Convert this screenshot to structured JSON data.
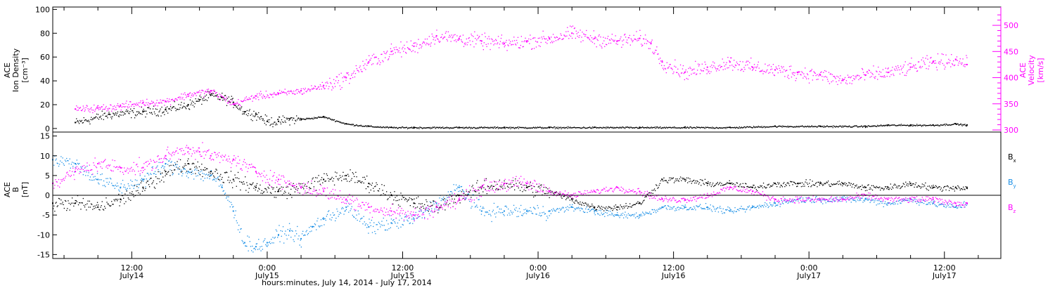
{
  "colors": {
    "black": "#000000",
    "magenta": "#ff00ff",
    "blue": "#1a8fe6",
    "axis": "#000000"
  },
  "x_axis": {
    "range_hours": [
      0,
      84
    ],
    "title": "hours:minutes, July 14, 2014 - July 17, 2014",
    "ticks": [
      {
        "time": "12:00",
        "day": "July14"
      },
      {
        "time": "0:00",
        "day": "July15"
      },
      {
        "time": "12:00",
        "day": "July15"
      },
      {
        "time": "0:00",
        "day": "July16"
      },
      {
        "time": "12:00",
        "day": "July16"
      },
      {
        "time": "0:00",
        "day": "July17"
      },
      {
        "time": "12:00",
        "day": "July17"
      }
    ]
  },
  "chart_data": [
    {
      "type": "scatter",
      "title": "",
      "ylabel": [
        "ACE",
        "Ion Density",
        "[cm⁻³]"
      ],
      "ylim": [
        -3,
        102
      ],
      "yticks": [
        0,
        20,
        40,
        60,
        80,
        100
      ],
      "y2label": [
        "ACE",
        "Velocity",
        "[km/s]"
      ],
      "y2lim": [
        296,
        535
      ],
      "y2ticks": [
        300,
        350,
        400,
        450,
        500
      ],
      "grid": false,
      "series": [
        {
          "key": "density",
          "color": "black",
          "axis": "left",
          "x_hours": [
            2,
            5,
            8,
            10,
            12,
            13,
            14,
            15,
            16,
            17,
            18,
            19,
            20,
            21,
            22,
            24,
            26,
            28,
            30,
            32,
            36,
            40,
            44,
            48,
            52,
            56,
            60,
            64,
            68,
            72,
            74,
            76,
            78,
            80,
            81
          ],
          "y": [
            5,
            12,
            14,
            16,
            20,
            24,
            28,
            26,
            22,
            14,
            12,
            6,
            6,
            8,
            8,
            10,
            4,
            2,
            1,
            1,
            1,
            1,
            1,
            1,
            1,
            1,
            1,
            2,
            2,
            2,
            3,
            3,
            3,
            4,
            3
          ]
        },
        {
          "key": "velocity",
          "color": "magenta",
          "axis": "right",
          "x_hours": [
            2,
            4,
            6,
            8,
            10,
            12,
            14,
            16,
            18,
            20,
            22,
            24,
            26,
            28,
            30,
            32,
            34,
            36,
            38,
            40,
            42,
            44,
            46,
            48,
            50,
            52,
            53,
            54,
            56,
            58,
            60,
            62,
            64,
            66,
            68,
            70,
            72,
            74,
            76,
            78,
            80,
            81
          ],
          "y": [
            340,
            342,
            346,
            352,
            355,
            368,
            375,
            350,
            365,
            370,
            375,
            385,
            400,
            430,
            450,
            460,
            480,
            475,
            470,
            465,
            470,
            475,
            485,
            475,
            470,
            475,
            465,
            430,
            410,
            420,
            430,
            420,
            415,
            410,
            405,
            395,
            405,
            410,
            420,
            430,
            435,
            425
          ]
        }
      ]
    },
    {
      "type": "scatter",
      "title": "",
      "ylabel": [
        "ACE",
        "B",
        "[nT]"
      ],
      "ylim": [
        -16,
        16
      ],
      "yticks": [
        -15,
        -10,
        -5,
        0,
        5,
        10,
        15
      ],
      "zero_line": true,
      "grid": false,
      "legend": {
        "position": "right",
        "entries": [
          {
            "symbol": "B",
            "sub": "x",
            "color": "black"
          },
          {
            "symbol": "B",
            "sub": "y",
            "color": "blue"
          },
          {
            "symbol": "B",
            "sub": "z",
            "color": "magenta"
          }
        ]
      },
      "series": [
        {
          "key": "Bx",
          "color": "black",
          "x_hours": [
            0,
            2,
            4,
            6,
            8,
            10,
            12,
            14,
            16,
            18,
            20,
            22,
            24,
            26,
            28,
            30,
            32,
            34,
            36,
            38,
            40,
            42,
            44,
            46,
            48,
            50,
            52,
            54,
            56,
            58,
            60,
            62,
            64,
            66,
            68,
            70,
            72,
            74,
            76,
            78,
            80,
            81
          ],
          "y": [
            -2,
            -2,
            -3,
            -1,
            2,
            6,
            8,
            6,
            4,
            2,
            1,
            2,
            4,
            5,
            3,
            0,
            -2,
            -3,
            0,
            2,
            3,
            2,
            1,
            -1,
            -3,
            -3,
            -2,
            4,
            4,
            3,
            3,
            2,
            3,
            3,
            3,
            3,
            2,
            2,
            3,
            2,
            2,
            2
          ]
        },
        {
          "key": "By",
          "color": "blue",
          "x_hours": [
            0,
            2,
            4,
            6,
            8,
            10,
            12,
            14,
            15,
            16,
            17,
            18,
            19,
            20,
            21,
            22,
            23,
            24,
            26,
            28,
            30,
            32,
            34,
            36,
            38,
            40,
            42,
            44,
            46,
            48,
            50,
            52,
            54,
            56,
            58,
            60,
            62,
            64,
            66,
            68,
            70,
            72,
            74,
            76,
            78,
            80,
            81
          ],
          "y": [
            9,
            8,
            4,
            2,
            4,
            8,
            6,
            5,
            2,
            -4,
            -12,
            -13,
            -12,
            -10,
            -9,
            -11,
            -8,
            -6,
            -3,
            -8,
            -7,
            -6,
            -2,
            2,
            -4,
            -4,
            -4,
            -4,
            -3,
            -4,
            -5,
            -5,
            -3,
            -3,
            -3,
            -4,
            -3,
            -2,
            -1,
            -1,
            -1,
            -1,
            -2,
            -1,
            -2,
            -3,
            -2
          ]
        },
        {
          "key": "Bz",
          "color": "magenta",
          "x_hours": [
            0,
            2,
            4,
            6,
            8,
            10,
            12,
            13,
            14,
            16,
            18,
            20,
            22,
            24,
            26,
            28,
            30,
            32,
            34,
            36,
            38,
            40,
            42,
            44,
            46,
            48,
            50,
            52,
            54,
            56,
            58,
            60,
            62,
            64,
            66,
            68,
            70,
            72,
            74,
            76,
            78,
            80,
            81
          ],
          "y": [
            3,
            6,
            8,
            7,
            7,
            10,
            12,
            11,
            10,
            9,
            6,
            4,
            2,
            1,
            -1,
            -3,
            -4,
            -5,
            -3,
            -1,
            2,
            3,
            3,
            1,
            0,
            1,
            2,
            1,
            -1,
            -1,
            0,
            2,
            1,
            -1,
            -1,
            -1,
            -1,
            0,
            -1,
            -1,
            -1,
            -2,
            -2
          ]
        }
      ]
    }
  ]
}
